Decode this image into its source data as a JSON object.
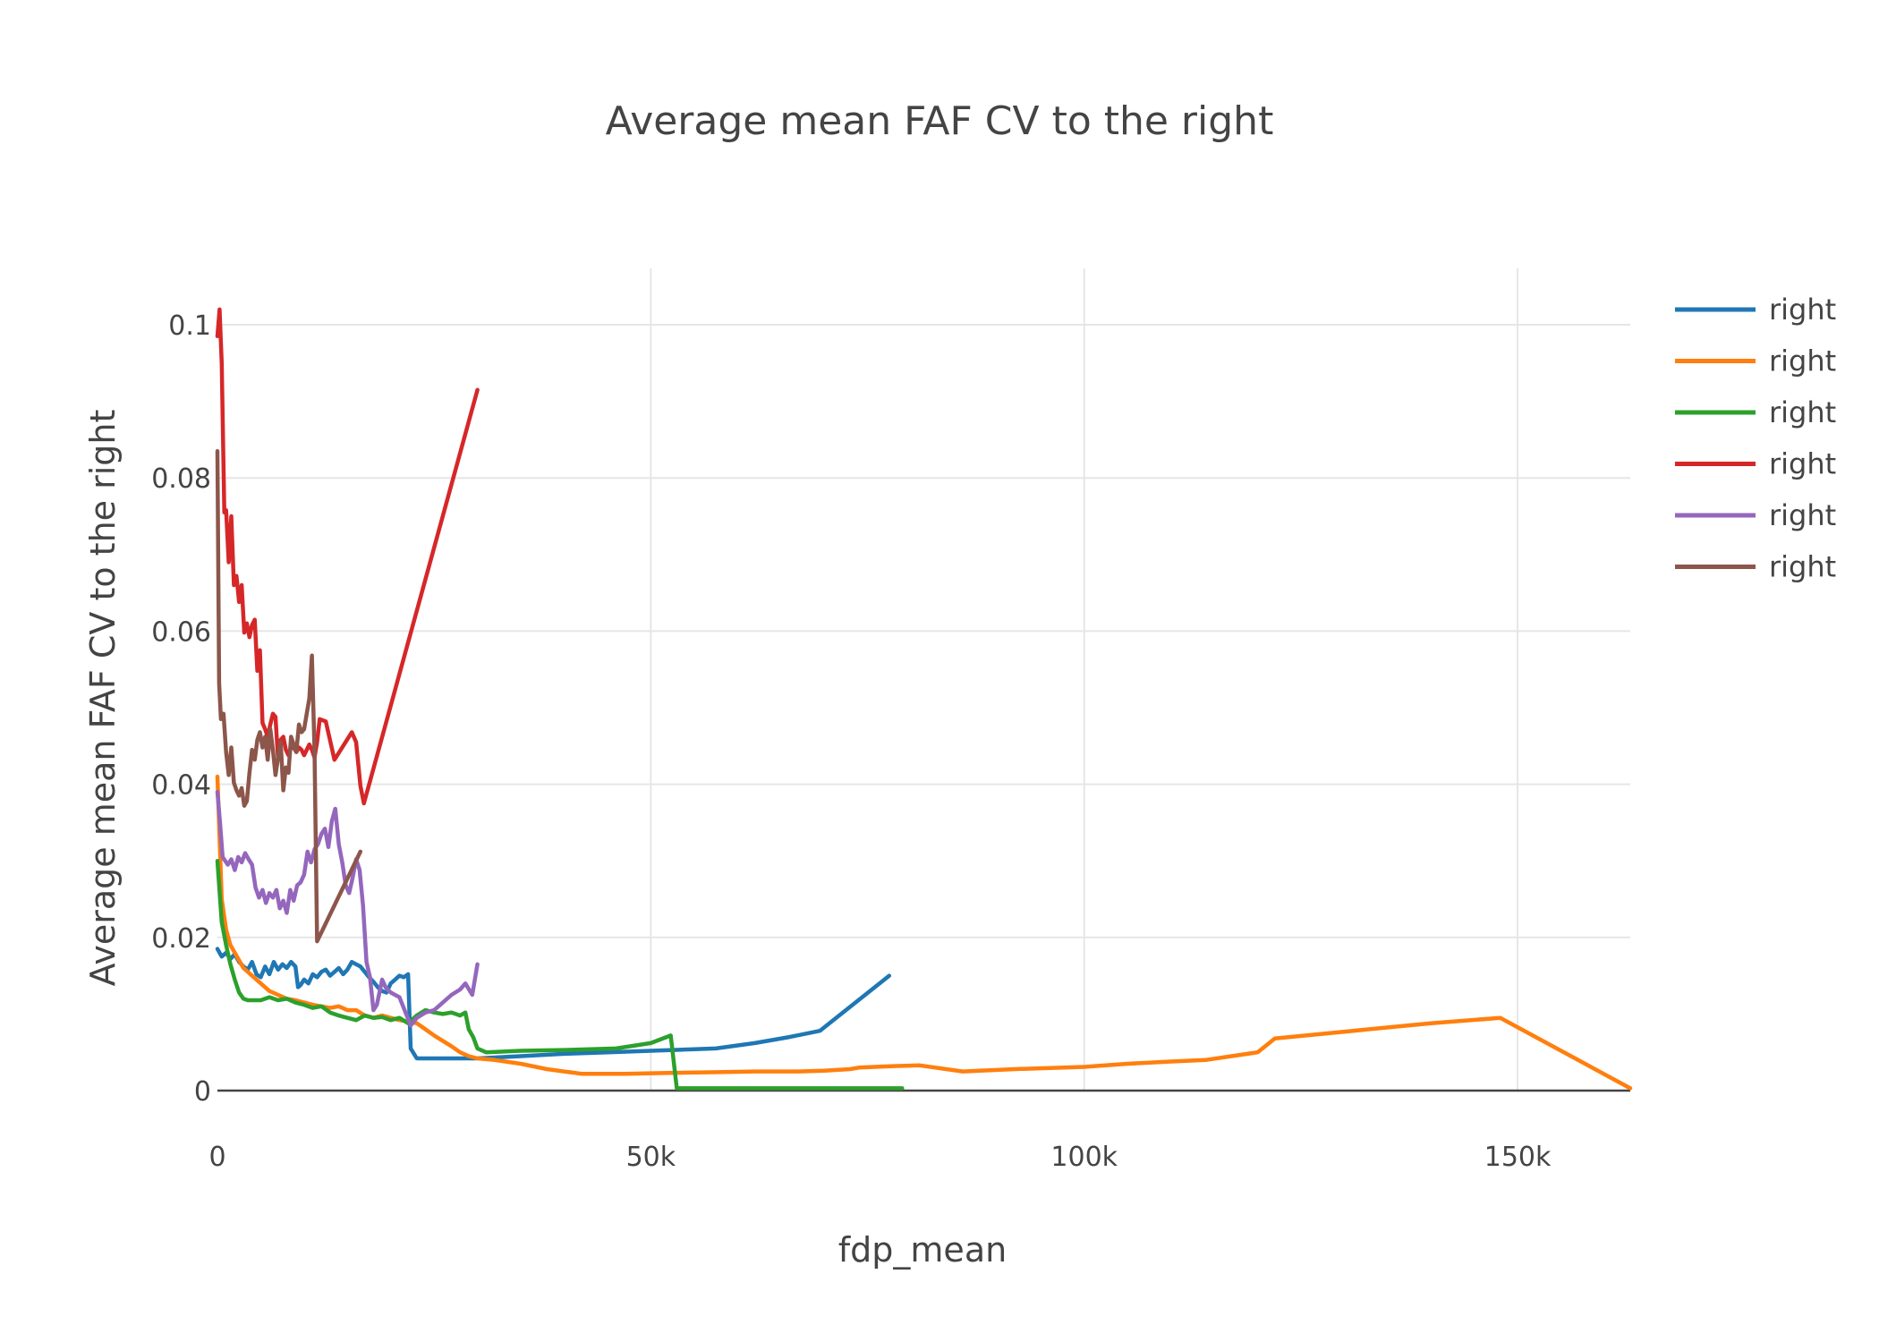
{
  "chart_data": {
    "type": "line",
    "title": "Average mean FAF CV to the right",
    "xlabel": "fdp_mean",
    "ylabel": "Average mean FAF CV to the right",
    "xlim": [
      0,
      163000
    ],
    "ylim": [
      0,
      0.1
    ],
    "x_ticks": [
      0,
      50000,
      100000,
      150000
    ],
    "x_tick_labels": [
      "0",
      "50k",
      "100k",
      "150k"
    ],
    "y_ticks": [
      0,
      0.02,
      0.04,
      0.06,
      0.08,
      0.1
    ],
    "y_tick_labels": [
      "0",
      "0.02",
      "0.04",
      "0.06",
      "0.08",
      "0.1"
    ],
    "grid": true,
    "legend_position": "top-right",
    "series": [
      {
        "name": "right",
        "color": "#1f77b4",
        "x": [
          0,
          500,
          1000,
          1500,
          2000,
          2500,
          3000,
          3500,
          4000,
          4500,
          5000,
          5500,
          6000,
          6500,
          7000,
          7500,
          8000,
          8500,
          9000,
          9300,
          9600,
          10000,
          10500,
          11000,
          11500,
          12000,
          12500,
          13000,
          13500,
          14000,
          14500,
          15000,
          15500,
          16000,
          16500,
          17000,
          17500,
          18000,
          18500,
          19000,
          19500,
          20000,
          20500,
          21000,
          21500,
          22000,
          22300,
          23000,
          24000,
          25000,
          27000,
          30000,
          35000,
          40000,
          45000,
          50000,
          57500,
          62000,
          66000,
          69500,
          77500
        ],
        "y": [
          0.0185,
          0.0175,
          0.018,
          0.0172,
          0.0178,
          0.0168,
          0.0162,
          0.0158,
          0.0168,
          0.0152,
          0.0148,
          0.0162,
          0.0152,
          0.0168,
          0.0158,
          0.0165,
          0.016,
          0.0168,
          0.0162,
          0.0135,
          0.0138,
          0.0145,
          0.014,
          0.0152,
          0.0148,
          0.0155,
          0.0158,
          0.015,
          0.0155,
          0.016,
          0.0152,
          0.0158,
          0.0168,
          0.0165,
          0.0162,
          0.0155,
          0.0148,
          0.0142,
          0.0135,
          0.013,
          0.0128,
          0.014,
          0.0145,
          0.015,
          0.0148,
          0.0152,
          0.0055,
          0.0042,
          0.0042,
          0.0042,
          0.0042,
          0.0042,
          0.0045,
          0.0048,
          0.005,
          0.0052,
          0.0055,
          0.0062,
          0.007,
          0.0078,
          0.015
        ]
      },
      {
        "name": "right",
        "color": "#ff7f0e",
        "x": [
          0,
          500,
          1000,
          1500,
          2000,
          3000,
          4000,
          5000,
          6000,
          7000,
          8000,
          9000,
          10000,
          11000,
          12000,
          13000,
          14000,
          15000,
          16000,
          17000,
          18000,
          19000,
          20000,
          21000,
          22000,
          23000,
          24000,
          25000,
          26000,
          27000,
          28000,
          29000,
          30000,
          32000,
          35000,
          38000,
          42000,
          47000,
          52000,
          57000,
          62000,
          67000,
          70000,
          73000,
          74000,
          78000,
          81000,
          86000,
          92000,
          100000,
          105000,
          110000,
          114000,
          120000,
          122000,
          131000,
          140000,
          148000,
          163000
        ],
        "y": [
          0.041,
          0.025,
          0.021,
          0.019,
          0.018,
          0.016,
          0.015,
          0.014,
          0.013,
          0.0125,
          0.012,
          0.0118,
          0.0115,
          0.0112,
          0.011,
          0.0108,
          0.011,
          0.0105,
          0.0105,
          0.0098,
          0.0095,
          0.0098,
          0.0095,
          0.0092,
          0.009,
          0.0088,
          0.008,
          0.0072,
          0.0065,
          0.0058,
          0.005,
          0.0045,
          0.0042,
          0.004,
          0.0035,
          0.0028,
          0.0022,
          0.0022,
          0.0023,
          0.0024,
          0.0025,
          0.0025,
          0.0026,
          0.0028,
          0.003,
          0.0032,
          0.0033,
          0.0025,
          0.0028,
          0.0031,
          0.0035,
          0.0038,
          0.004,
          0.005,
          0.0068,
          0.0078,
          0.0088,
          0.0095,
          0.0003
        ]
      },
      {
        "name": "right",
        "color": "#2ca02c",
        "x": [
          0,
          500,
          1000,
          1500,
          2000,
          2500,
          3000,
          3500,
          4000,
          5000,
          6000,
          7000,
          8000,
          9000,
          10000,
          11000,
          12000,
          13000,
          14000,
          15000,
          16000,
          17000,
          18000,
          19000,
          20000,
          21000,
          22000,
          23000,
          24000,
          25000,
          26000,
          27000,
          28000,
          28600,
          29000,
          29500,
          30000,
          31000,
          35000,
          40000,
          46000,
          50000,
          52300,
          53000,
          60000,
          70000,
          79000
        ],
        "y": [
          0.03,
          0.022,
          0.019,
          0.0165,
          0.0145,
          0.0128,
          0.012,
          0.0118,
          0.0118,
          0.0118,
          0.0122,
          0.0118,
          0.012,
          0.0115,
          0.0112,
          0.0108,
          0.011,
          0.0102,
          0.0098,
          0.0095,
          0.0092,
          0.0098,
          0.0095,
          0.0096,
          0.0092,
          0.0095,
          0.0088,
          0.0098,
          0.0105,
          0.0102,
          0.01,
          0.0102,
          0.0098,
          0.0102,
          0.008,
          0.007,
          0.0055,
          0.005,
          0.0052,
          0.0053,
          0.0055,
          0.0062,
          0.0072,
          0.0003,
          0.0003,
          0.0003,
          0.0003
        ]
      },
      {
        "name": "right",
        "color": "#d62728",
        "x": [
          0,
          250,
          500,
          800,
          1000,
          1300,
          1600,
          1900,
          2200,
          2500,
          2800,
          3100,
          3400,
          3700,
          4000,
          4300,
          4600,
          4900,
          5200,
          5500,
          5800,
          6100,
          6400,
          6700,
          7000,
          7300,
          7600,
          7900,
          8200,
          8500,
          8800,
          9100,
          9400,
          9700,
          10000,
          10300,
          10600,
          10900,
          11200,
          11500,
          11800,
          12500,
          13500,
          15500,
          16000,
          16500,
          16900,
          30000
        ],
        "y": [
          0.0985,
          0.102,
          0.095,
          0.0755,
          0.0758,
          0.069,
          0.075,
          0.066,
          0.0672,
          0.0638,
          0.066,
          0.0598,
          0.061,
          0.0592,
          0.0608,
          0.0615,
          0.0548,
          0.0575,
          0.048,
          0.0472,
          0.0462,
          0.0478,
          0.0492,
          0.0488,
          0.0432,
          0.0458,
          0.0462,
          0.0445,
          0.0438,
          0.0448,
          0.0448,
          0.0442,
          0.0448,
          0.0445,
          0.0438,
          0.0445,
          0.0452,
          0.0445,
          0.0435,
          0.0455,
          0.0485,
          0.0482,
          0.0432,
          0.0468,
          0.0455,
          0.0398,
          0.0375,
          0.0915
        ]
      },
      {
        "name": "right",
        "color": "#9467bd",
        "x": [
          0,
          300,
          600,
          900,
          1200,
          1600,
          2000,
          2400,
          2800,
          3200,
          3600,
          4000,
          4400,
          4800,
          5200,
          5600,
          6000,
          6400,
          6800,
          7200,
          7600,
          8000,
          8400,
          8800,
          9200,
          9600,
          10000,
          10400,
          10800,
          11200,
          11600,
          12000,
          12400,
          12800,
          13200,
          13600,
          14000,
          14400,
          14800,
          15200,
          15600,
          16000,
          16400,
          16800,
          17200,
          17600,
          18000,
          18400,
          19000,
          19400,
          20000,
          21000,
          22300,
          23000,
          24000,
          25000,
          26000,
          27000,
          28000,
          28600,
          29400,
          30000
        ],
        "y": [
          0.039,
          0.035,
          0.0305,
          0.03,
          0.0295,
          0.0302,
          0.0288,
          0.0305,
          0.0298,
          0.031,
          0.0302,
          0.0295,
          0.0265,
          0.0252,
          0.0262,
          0.0245,
          0.0258,
          0.0252,
          0.0262,
          0.0238,
          0.0248,
          0.0232,
          0.0262,
          0.0248,
          0.0268,
          0.0272,
          0.0282,
          0.0312,
          0.0298,
          0.0315,
          0.0322,
          0.0335,
          0.0342,
          0.0318,
          0.0352,
          0.0368,
          0.0322,
          0.0298,
          0.0268,
          0.0258,
          0.0278,
          0.0302,
          0.0288,
          0.0242,
          0.0168,
          0.0148,
          0.0105,
          0.0112,
          0.0145,
          0.0135,
          0.0128,
          0.0122,
          0.0085,
          0.0095,
          0.0102,
          0.0105,
          0.0115,
          0.0125,
          0.0132,
          0.014,
          0.0125,
          0.0165
        ]
      },
      {
        "name": "right",
        "color": "#8c564b",
        "x": [
          0,
          200,
          400,
          700,
          1000,
          1300,
          1600,
          1900,
          2200,
          2500,
          2800,
          3100,
          3400,
          3700,
          4000,
          4300,
          4600,
          4900,
          5200,
          5500,
          5800,
          6100,
          6400,
          6700,
          7000,
          7300,
          7600,
          7900,
          8200,
          8500,
          8800,
          9100,
          9400,
          9700,
          10000,
          10300,
          10600,
          10900,
          11200,
          11500,
          16500
        ],
        "y": [
          0.0835,
          0.0532,
          0.0485,
          0.0492,
          0.0442,
          0.0412,
          0.0448,
          0.0402,
          0.0392,
          0.0385,
          0.0395,
          0.0372,
          0.0378,
          0.0415,
          0.0445,
          0.0432,
          0.0458,
          0.0468,
          0.0448,
          0.0462,
          0.0432,
          0.0472,
          0.0445,
          0.0412,
          0.0435,
          0.0455,
          0.0392,
          0.0422,
          0.0415,
          0.0462,
          0.0452,
          0.0442,
          0.0478,
          0.0468,
          0.0472,
          0.0492,
          0.0512,
          0.0568,
          0.0445,
          0.0195,
          0.0312
        ]
      }
    ]
  }
}
